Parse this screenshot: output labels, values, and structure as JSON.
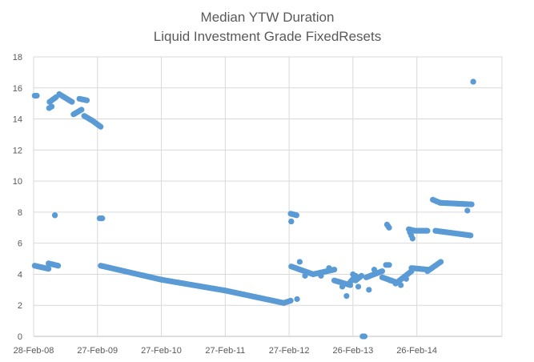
{
  "chart_data": {
    "type": "scatter",
    "title": "Median YTW Duration",
    "subtitle": "Liquid Investment Grade FixedResets",
    "xlabel": "",
    "ylabel": "",
    "ylim": [
      0,
      18
    ],
    "yticks": [
      0,
      2,
      4,
      6,
      8,
      10,
      12,
      14,
      16,
      18
    ],
    "x_unit": "months since 28-Feb-08",
    "xlim": [
      0,
      88
    ],
    "xticks": [
      {
        "label": "28-Feb-08",
        "x": 0
      },
      {
        "label": "27-Feb-09",
        "x": 12
      },
      {
        "label": "27-Feb-10",
        "x": 24
      },
      {
        "label": "27-Feb-11",
        "x": 36
      },
      {
        "label": "27-Feb-12",
        "x": 48
      },
      {
        "label": "26-Feb-13",
        "x": 60
      },
      {
        "label": "26-Feb-14",
        "x": 72
      }
    ],
    "grid": {
      "x": true,
      "y": true
    },
    "legend": "none",
    "color": "#5b9bd5",
    "series": [
      {
        "name": "Median YTW Duration",
        "segments": [
          {
            "x": [
              0.2,
              0.6
            ],
            "y": [
              15.5,
              15.5
            ]
          },
          {
            "x": [
              3.0,
              4.2
            ],
            "y": [
              15.1,
              15.4
            ]
          },
          {
            "x": [
              2.9,
              3.4
            ],
            "y": [
              14.7,
              14.8
            ]
          },
          {
            "x": [
              4.8,
              7.2
            ],
            "y": [
              15.6,
              15.1
            ]
          },
          {
            "x": [
              7.5,
              9.0
            ],
            "y": [
              14.3,
              14.6
            ]
          },
          {
            "x": [
              8.6,
              10.0
            ],
            "y": [
              15.3,
              15.2
            ]
          },
          {
            "x": [
              9.5,
              11.0
            ],
            "y": [
              14.2,
              13.9
            ]
          },
          {
            "x": [
              11.0,
              12.6
            ],
            "y": [
              13.9,
              13.5
            ]
          },
          {
            "x": [
              4.0,
              4.0
            ],
            "y": [
              7.8,
              7.8
            ]
          },
          {
            "x": [
              12.4,
              12.9
            ],
            "y": [
              7.6,
              7.6
            ]
          },
          {
            "x": [
              0.2,
              2.8
            ],
            "y": [
              4.55,
              4.35
            ]
          },
          {
            "x": [
              2.8,
              4.6
            ],
            "y": [
              4.7,
              4.55
            ]
          },
          {
            "x": [
              12.6,
              24.0
            ],
            "y": [
              4.55,
              3.65
            ]
          },
          {
            "x": [
              24.0,
              36.0
            ],
            "y": [
              3.65,
              2.95
            ]
          },
          {
            "x": [
              36.0,
              47.0
            ],
            "y": [
              2.95,
              2.15
            ]
          },
          {
            "x": [
              47.0,
              48.3
            ],
            "y": [
              2.15,
              2.3
            ]
          },
          {
            "x": [
              48.3,
              49.4
            ],
            "y": [
              7.9,
              7.8
            ]
          },
          {
            "x": [
              48.4,
              48.4
            ],
            "y": [
              7.4,
              7.4
            ]
          },
          {
            "x": [
              48.4,
              52.5
            ],
            "y": [
              4.5,
              4.0
            ]
          },
          {
            "x": [
              52.5,
              56.5
            ],
            "y": [
              4.0,
              4.3
            ]
          },
          {
            "x": [
              56.5,
              59.5
            ],
            "y": [
              3.6,
              3.3
            ]
          },
          {
            "x": [
              59.5,
              60.5
            ],
            "y": [
              3.5,
              3.9
            ]
          },
          {
            "x": [
              60.5,
              61.6
            ],
            "y": [
              3.6,
              3.9
            ]
          },
          {
            "x": [
              61.8,
              62.2
            ],
            "y": [
              0.0,
              0.0
            ]
          },
          {
            "x": [
              62.5,
              65.5
            ],
            "y": [
              3.8,
              4.2
            ]
          },
          {
            "x": [
              65.5,
              68.0
            ],
            "y": [
              3.8,
              3.5
            ]
          },
          {
            "x": [
              68.0,
              71.0
            ],
            "y": [
              3.4,
              4.2
            ]
          },
          {
            "x": [
              71.0,
              74.0
            ],
            "y": [
              4.4,
              4.3
            ]
          },
          {
            "x": [
              74.0,
              76.5
            ],
            "y": [
              4.2,
              4.8
            ]
          },
          {
            "x": [
              70.7,
              71.2
            ],
            "y": [
              6.7,
              6.3
            ]
          },
          {
            "x": [
              70.5,
              71.6
            ],
            "y": [
              6.9,
              6.8
            ]
          },
          {
            "x": [
              71.8,
              74.0
            ],
            "y": [
              6.8,
              6.8
            ]
          },
          {
            "x": [
              75.0,
              76.4
            ],
            "y": [
              8.8,
              8.6
            ]
          },
          {
            "x": [
              76.4,
              82.3
            ],
            "y": [
              8.6,
              8.5
            ]
          },
          {
            "x": [
              75.5,
              82.1
            ],
            "y": [
              6.8,
              6.5
            ]
          },
          {
            "x": [
              66.4,
              66.8
            ],
            "y": [
              7.2,
              7.0
            ]
          },
          {
            "x": [
              66.2,
              66.8
            ],
            "y": [
              4.6,
              4.6
            ]
          },
          {
            "x": [
              82.6,
              82.6
            ],
            "y": [
              16.4,
              16.4
            ]
          }
        ],
        "points": [
          {
            "x": 49.5,
            "y": 2.4
          },
          {
            "x": 50.0,
            "y": 4.8
          },
          {
            "x": 51.0,
            "y": 3.9
          },
          {
            "x": 54.0,
            "y": 3.9
          },
          {
            "x": 55.5,
            "y": 4.4
          },
          {
            "x": 58.0,
            "y": 3.2
          },
          {
            "x": 58.8,
            "y": 2.6
          },
          {
            "x": 60.0,
            "y": 4.0
          },
          {
            "x": 61.0,
            "y": 3.2
          },
          {
            "x": 63.0,
            "y": 3.0
          },
          {
            "x": 64.0,
            "y": 4.3
          },
          {
            "x": 67.0,
            "y": 3.6
          },
          {
            "x": 69.0,
            "y": 3.3
          },
          {
            "x": 70.0,
            "y": 3.7
          },
          {
            "x": 81.5,
            "y": 8.1
          }
        ]
      }
    ]
  }
}
